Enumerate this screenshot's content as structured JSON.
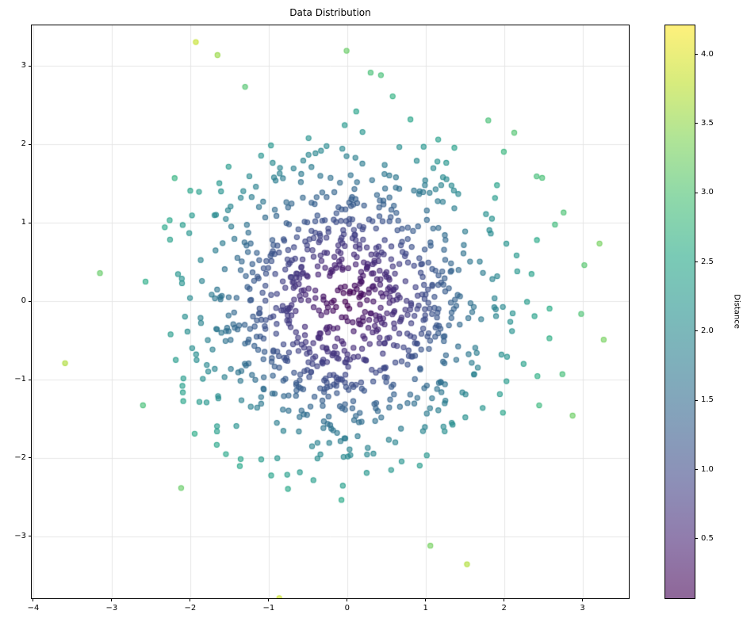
{
  "chart_data": {
    "type": "scatter",
    "title": "Data Distribution",
    "xlabel": "",
    "ylabel": "",
    "xlim": [
      -4.02,
      3.59
    ],
    "ylim": [
      -3.79,
      3.52
    ],
    "x_ticks": [
      -4,
      -3,
      -2,
      -1,
      0,
      1,
      2,
      3
    ],
    "x_tick_labels": [
      "−4",
      "−3",
      "−2",
      "−1",
      "0",
      "1",
      "2",
      "3"
    ],
    "y_ticks": [
      3,
      2,
      1,
      0,
      -1,
      -2,
      -3
    ],
    "y_tick_labels": [
      "3",
      "2",
      "1",
      "0",
      "−1",
      "−2",
      "−3"
    ],
    "grid": true,
    "grid_color": "#e6e6e6",
    "background": "#ffffff",
    "marker": {
      "radius": 3.1,
      "fill_alpha": 0.6,
      "edge_alpha": 0.84,
      "edge_width": 1.1
    },
    "points": {
      "n": 1000,
      "mean": 0,
      "std": 1,
      "seed": 7,
      "distribution": "bivariate standard normal",
      "color_by": "distance from origin sqrt(x^2+y^2)"
    },
    "colormap": {
      "name": "viridis",
      "stops": [
        [
          68,
          1,
          84
        ],
        [
          72,
          36,
          117
        ],
        [
          65,
          68,
          135
        ],
        [
          53,
          95,
          141
        ],
        [
          42,
          120,
          142
        ],
        [
          33,
          144,
          140
        ],
        [
          34,
          168,
          132
        ],
        [
          68,
          191,
          112
        ],
        [
          122,
          210,
          81
        ],
        [
          189,
          223,
          38
        ],
        [
          253,
          231,
          37
        ]
      ]
    },
    "colorbar": {
      "label": "Distance",
      "vmin": 0.07,
      "vmax": 4.21,
      "ticks": [
        0.5,
        1.0,
        1.5,
        2.0,
        2.5,
        3.0,
        3.5,
        4.0
      ],
      "tick_labels": [
        "0.5",
        "1.0",
        "1.5",
        "2.0",
        "2.5",
        "3.0",
        "3.5",
        "4.0"
      ]
    }
  }
}
